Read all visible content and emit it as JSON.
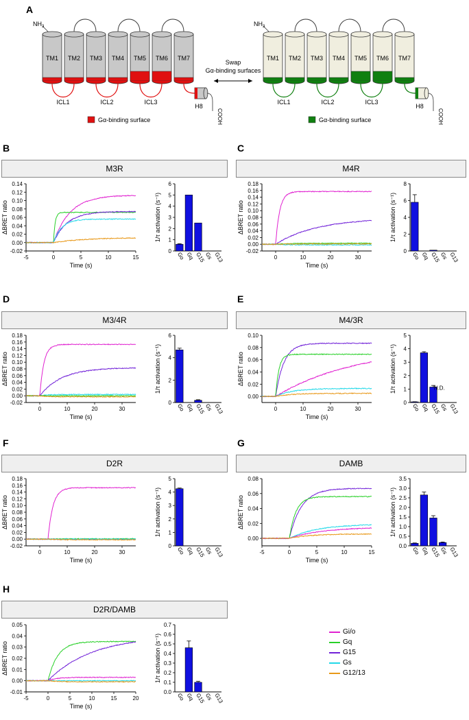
{
  "figure": {
    "panel_letters": [
      "A",
      "B",
      "C",
      "D",
      "E",
      "F",
      "G",
      "H"
    ],
    "colors": {
      "gio": "#e020d0",
      "gq": "#28d028",
      "g15": "#7020d8",
      "gs": "#20d8e8",
      "g1213": "#e89818",
      "bar": "#1010e0",
      "red": "#e01010",
      "green": "#108010",
      "gray": "#c8c8c8",
      "cream": "#f0eedf"
    }
  },
  "schematic": {
    "nh3": "NH",
    "nh3_sub": "3",
    "cooh": "COOH",
    "tm_labels": [
      "TM1",
      "TM2",
      "TM3",
      "TM4",
      "TM5",
      "TM6",
      "TM7"
    ],
    "icl_labels": [
      "ICL1",
      "ICL2",
      "ICL3"
    ],
    "h8": "H8",
    "swap_line1": "Swap",
    "swap_line2": "Gα-binding surfaces",
    "legend_red": "Gα-binding surface",
    "legend_green": "Gα-binding surface"
  },
  "legend": {
    "items": [
      {
        "name": "Gi/o",
        "color": "#e020d0"
      },
      {
        "name": "Gq",
        "color": "#28d028"
      },
      {
        "name": "G15",
        "color": "#7020d8"
      },
      {
        "name": "Gs",
        "color": "#20d8e8"
      },
      {
        "name": "G12/13",
        "color": "#e89818"
      }
    ]
  },
  "chart_data": [
    {
      "panel": "B",
      "title": "M3R",
      "type": "line",
      "xlabel": "Time (s)",
      "ylabel": "ΔBRET ratio",
      "xlim": [
        -5,
        15
      ],
      "ylim": [
        -0.02,
        0.14
      ],
      "xticks": [
        "-5",
        "0",
        "5",
        "10",
        "15"
      ],
      "yticks": [
        "-0.02",
        "0.00",
        "0.02",
        "0.04",
        "0.06",
        "0.08",
        "0.10",
        "0.12",
        "0.14"
      ],
      "series": [
        {
          "name": "Gi/o",
          "plateau": 0.113,
          "onset": 0,
          "tau": 3.0
        },
        {
          "name": "Gq",
          "plateau": 0.072,
          "onset": 0,
          "tau": 0.3
        },
        {
          "name": "G15",
          "plateau": 0.074,
          "onset": 0,
          "tau": 2.5
        },
        {
          "name": "Gs",
          "plateau": 0.056,
          "onset": 0,
          "tau": 1.5
        },
        {
          "name": "G12/13",
          "plateau": 0.012,
          "onset": 0,
          "tau": 6.0
        }
      ],
      "bar": {
        "type": "bar",
        "ylabel": "1/τ activation (s⁻¹)",
        "categories": [
          "Go",
          "Gq",
          "G15",
          "Gs",
          "G13"
        ],
        "values": [
          0.6,
          5.0,
          2.5,
          0,
          0
        ],
        "errors": [
          0.05,
          0,
          0,
          0,
          0
        ],
        "ylim": [
          0,
          6
        ],
        "yticks": [
          "0",
          "1",
          "2",
          "3",
          "4",
          "5",
          "6"
        ],
        "annotation": ""
      }
    },
    {
      "panel": "C",
      "title": "M4R",
      "type": "line",
      "xlabel": "Time (s)",
      "ylabel": "ΔBRET ratio",
      "xlim": [
        -5,
        35
      ],
      "ylim": [
        -0.02,
        0.18
      ],
      "xticks": [
        "0",
        "10",
        "20",
        "30"
      ],
      "yticks": [
        "-0.02",
        "0.00",
        "0.02",
        "0.04",
        "0.06",
        "0.08",
        "0.10",
        "0.12",
        "0.14",
        "0.16",
        "0.18"
      ],
      "series": [
        {
          "name": "Gi/o",
          "plateau": 0.157,
          "onset": 0,
          "tau": 1.5
        },
        {
          "name": "G15",
          "plateau": 0.078,
          "onset": 0,
          "tau": 15
        },
        {
          "name": "Gq",
          "plateau": 0.003,
          "onset": 0,
          "tau": 5
        },
        {
          "name": "Gs",
          "plateau": -0.002,
          "onset": 0,
          "tau": 5
        },
        {
          "name": "G12/13",
          "plateau": 0.001,
          "onset": 0,
          "tau": 5
        }
      ],
      "bar": {
        "type": "bar",
        "ylabel": "1/τ activation (s⁻¹)",
        "categories": [
          "Go",
          "Gq",
          "G15",
          "Gs",
          "G13"
        ],
        "values": [
          5.8,
          0,
          0.1,
          0,
          0
        ],
        "errors": [
          0.9,
          0,
          0,
          0,
          0
        ],
        "ylim": [
          0,
          8
        ],
        "yticks": [
          "0",
          "2",
          "4",
          "6",
          "8"
        ],
        "annotation": ""
      }
    },
    {
      "panel": "D",
      "title": "M3/4R",
      "type": "line",
      "xlabel": "Time (s)",
      "ylabel": "ΔBRET ratio",
      "xlim": [
        -5,
        35
      ],
      "ylim": [
        -0.02,
        0.18
      ],
      "xticks": [
        "0",
        "10",
        "20",
        "30"
      ],
      "yticks": [
        "-0.02",
        "0.00",
        "0.02",
        "0.04",
        "0.06",
        "0.08",
        "0.10",
        "0.12",
        "0.14",
        "0.16",
        "0.18"
      ],
      "series": [
        {
          "name": "Gi/o",
          "plateau": 0.153,
          "onset": 0,
          "tau": 1.5
        },
        {
          "name": "G15",
          "plateau": 0.084,
          "onset": 0,
          "tau": 8
        },
        {
          "name": "Gs",
          "plateau": 0.004,
          "onset": 0,
          "tau": 3
        },
        {
          "name": "Gq",
          "plateau": 0.0,
          "onset": 0,
          "tau": 3
        },
        {
          "name": "G12/13",
          "plateau": -0.003,
          "onset": 0,
          "tau": 3
        }
      ],
      "bar": {
        "type": "bar",
        "ylabel": "1/τ activation (s⁻¹)",
        "categories": [
          "Go",
          "Gq",
          "G15",
          "Gs",
          "G13"
        ],
        "values": [
          4.7,
          0,
          0.2,
          0,
          0
        ],
        "errors": [
          0.15,
          0,
          0.05,
          0,
          0
        ],
        "ylim": [
          0,
          6
        ],
        "yticks": [
          "0",
          "2",
          "4",
          "6"
        ],
        "annotation": ""
      }
    },
    {
      "panel": "E",
      "title": "M4/3R",
      "type": "line",
      "xlabel": "Time (s)",
      "ylabel": "ΔBRET ratio",
      "xlim": [
        -5,
        35
      ],
      "ylim": [
        -0.01,
        0.1
      ],
      "xticks": [
        "0",
        "10",
        "20",
        "30"
      ],
      "yticks": [
        "0.00",
        "0.02",
        "0.04",
        "0.06",
        "0.08",
        "0.10"
      ],
      "series": [
        {
          "name": "G15",
          "plateau": 0.087,
          "onset": 0,
          "tau": 3
        },
        {
          "name": "Gq",
          "plateau": 0.069,
          "onset": 0,
          "tau": 1.2
        },
        {
          "name": "Gi/o",
          "plateau": 0.082,
          "onset": 0,
          "tau": 30
        },
        {
          "name": "Gs",
          "plateau": 0.013,
          "onset": 0,
          "tau": 6
        },
        {
          "name": "G12/13",
          "plateau": 0.005,
          "onset": 0,
          "tau": 6
        }
      ],
      "bar": {
        "type": "bar",
        "ylabel": "1/τ activation (s⁻¹)",
        "categories": [
          "Go",
          "Gq",
          "G15",
          "Gs",
          "G13"
        ],
        "values": [
          0.05,
          3.7,
          1.15,
          0,
          0
        ],
        "errors": [
          0.01,
          0.08,
          0.12,
          0,
          0
        ],
        "ylim": [
          0,
          5
        ],
        "yticks": [
          "0",
          "1",
          "2",
          "3",
          "4",
          "5"
        ],
        "annotation": "N.D."
      }
    },
    {
      "panel": "F",
      "title": "D2R",
      "type": "line",
      "xlabel": "Time (s)",
      "ylabel": "ΔBRET ratio",
      "xlim": [
        -5,
        35
      ],
      "ylim": [
        -0.02,
        0.18
      ],
      "xticks": [
        "0",
        "10",
        "20",
        "30"
      ],
      "yticks": [
        "-0.02",
        "0.00",
        "0.02",
        "0.04",
        "0.06",
        "0.08",
        "0.10",
        "0.12",
        "0.14",
        "0.16",
        "0.18"
      ],
      "series": [
        {
          "name": "Gi/o",
          "plateau": 0.153,
          "onset": 3,
          "tau": 1.8
        },
        {
          "name": "Gq",
          "plateau": 0.001,
          "onset": 3,
          "tau": 3
        },
        {
          "name": "G15",
          "plateau": -0.001,
          "onset": 3,
          "tau": 3
        },
        {
          "name": "Gs",
          "plateau": 0.0,
          "onset": 3,
          "tau": 3
        },
        {
          "name": "G12/13",
          "plateau": -0.002,
          "onset": 3,
          "tau": 3
        }
      ],
      "bar": {
        "type": "bar",
        "ylabel": "1/τ activation (s⁻¹)",
        "categories": [
          "Go",
          "Gq",
          "G15",
          "Gs",
          "G13"
        ],
        "values": [
          4.25,
          0,
          0,
          0,
          0
        ],
        "errors": [
          0.05,
          0,
          0,
          0,
          0
        ],
        "ylim": [
          0,
          5
        ],
        "yticks": [
          "0",
          "1",
          "2",
          "3",
          "4",
          "5"
        ],
        "annotation": ""
      }
    },
    {
      "panel": "G",
      "title": "DAMB",
      "type": "line",
      "xlabel": "Time (s)",
      "ylabel": "ΔBRET ratio",
      "xlim": [
        -5,
        15
      ],
      "ylim": [
        -0.01,
        0.08
      ],
      "xticks": [
        "-5",
        "0",
        "5",
        "10",
        "15"
      ],
      "yticks": [
        "0.00",
        "0.02",
        "0.04",
        "0.06",
        "0.08"
      ],
      "series": [
        {
          "name": "G15",
          "plateau": 0.067,
          "onset": 0,
          "tau": 2.2
        },
        {
          "name": "Gq",
          "plateau": 0.056,
          "onset": 0,
          "tau": 1.2
        },
        {
          "name": "Gs",
          "plateau": 0.019,
          "onset": 0,
          "tau": 5
        },
        {
          "name": "Gi/o",
          "plateau": 0.015,
          "onset": 0,
          "tau": 6
        },
        {
          "name": "G12/13",
          "plateau": 0.006,
          "onset": 0,
          "tau": 4
        }
      ],
      "bar": {
        "type": "bar",
        "ylabel": "1/τ activation (s⁻¹)",
        "categories": [
          "Go",
          "Gq",
          "G15",
          "Gs",
          "G13"
        ],
        "values": [
          0.13,
          2.65,
          1.45,
          0.17,
          0
        ],
        "errors": [
          0.02,
          0.15,
          0.12,
          0.03,
          0
        ],
        "ylim": [
          0,
          3.5
        ],
        "yticks": [
          "0.0",
          "0.5",
          "1.0",
          "1.5",
          "2.0",
          "2.5",
          "3.0",
          "3.5"
        ],
        "annotation": ""
      }
    },
    {
      "panel": "H",
      "title": "D2R/DAMB",
      "type": "line",
      "xlabel": "Time (s)",
      "ylabel": "ΔBRET ratio",
      "xlim": [
        -5,
        20
      ],
      "ylim": [
        -0.01,
        0.05
      ],
      "xticks": [
        "-5",
        "0",
        "5",
        "10",
        "15",
        "20"
      ],
      "yticks": [
        "-0.01",
        "0.00",
        "0.01",
        "0.02",
        "0.03",
        "0.04",
        "0.05"
      ],
      "series": [
        {
          "name": "Gq",
          "plateau": 0.035,
          "onset": 0,
          "tau": 2.2
        },
        {
          "name": "G15",
          "plateau": 0.04,
          "onset": 0,
          "tau": 10
        },
        {
          "name": "Gi/o",
          "plateau": 0.003,
          "onset": 0,
          "tau": 2
        },
        {
          "name": "Gs",
          "plateau": 0.0,
          "onset": 0,
          "tau": 2
        },
        {
          "name": "G12/13",
          "plateau": -0.001,
          "onset": 0,
          "tau": 2
        }
      ],
      "bar": {
        "type": "bar",
        "ylabel": "1/τ activation (s⁻¹)",
        "categories": [
          "Go",
          "Gq",
          "G15",
          "Gs",
          "G13"
        ],
        "values": [
          0,
          0.46,
          0.1,
          0,
          0
        ],
        "errors": [
          0,
          0.07,
          0.01,
          0,
          0
        ],
        "ylim": [
          0,
          0.7
        ],
        "yticks": [
          "0.0",
          "0.1",
          "0.2",
          "0.3",
          "0.4",
          "0.5",
          "0.6",
          "0.7"
        ],
        "annotation": ""
      }
    }
  ]
}
